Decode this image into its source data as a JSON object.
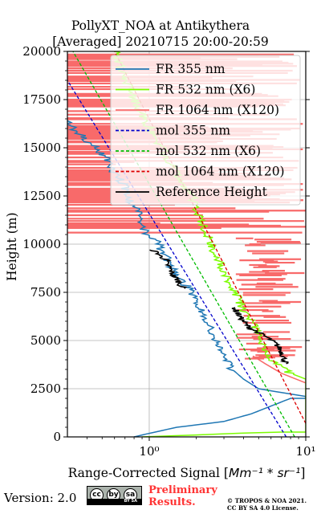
{
  "chart_data": {
    "type": "line",
    "title_line1": "PollyXT_NOA at Antikythera",
    "title_line2": "[Averaged] 20210715 20:00-20:59",
    "xlabel": "Range-Corrected Signal [",
    "xlabel_unit": "Mm⁻¹ * sr⁻¹",
    "xlabel_end": "]",
    "ylabel": "Height (m)",
    "xscale": "log",
    "xlim": [
      0.3,
      10
    ],
    "ylim": [
      0,
      20000
    ],
    "x_ticks": [
      {
        "value": 1,
        "label": "10⁰"
      },
      {
        "value": 10,
        "label": "10¹"
      }
    ],
    "y_ticks": [
      0,
      2500,
      5000,
      7500,
      10000,
      12500,
      15000,
      17500,
      20000
    ],
    "grid": true,
    "legend": "top-right",
    "series": [
      {
        "name": "FR 355 nm",
        "color": "#1f77b4",
        "style": "solid",
        "points": [
          [
            0.8,
            0
          ],
          [
            0.9,
            100
          ],
          [
            1.5,
            500
          ],
          [
            3,
            800
          ],
          [
            4.5,
            1200
          ],
          [
            6,
            1600
          ],
          [
            8,
            2000
          ],
          [
            10,
            2000
          ],
          [
            10,
            2100
          ],
          [
            7,
            2300
          ],
          [
            5,
            2500
          ],
          [
            4,
            3000
          ],
          [
            3.4,
            3500
          ],
          [
            3.0,
            4200
          ],
          [
            2.8,
            4700
          ],
          [
            2.6,
            5000
          ],
          [
            2.5,
            5500
          ],
          [
            2.3,
            6200
          ],
          [
            2.0,
            7000
          ],
          [
            1.8,
            7700
          ],
          [
            1.5,
            8300
          ],
          [
            1.35,
            9000
          ],
          [
            1.2,
            9700
          ],
          [
            1.1,
            10200
          ],
          [
            0.95,
            10600
          ],
          [
            0.9,
            11200
          ],
          [
            0.85,
            11600
          ],
          [
            0.75,
            12300
          ],
          [
            0.7,
            13000
          ],
          [
            0.6,
            13700
          ],
          [
            0.55,
            14300
          ],
          [
            0.45,
            15000
          ],
          [
            0.38,
            15500
          ],
          [
            0.33,
            16000
          ],
          [
            0.3,
            16500
          ]
        ]
      },
      {
        "name": "FR 532 nm (X6)",
        "color": "#7cfc00",
        "style": "solid",
        "points": [
          [
            0.9,
            0
          ],
          [
            2,
            100
          ],
          [
            4,
            200
          ],
          [
            7,
            250
          ],
          [
            10,
            250
          ],
          [
            10,
            3000
          ],
          [
            8,
            3300
          ],
          [
            6.5,
            3800
          ],
          [
            5.5,
            4500
          ],
          [
            5,
            5200
          ],
          [
            4.5,
            6000
          ],
          [
            4,
            6600
          ],
          [
            3.7,
            7200
          ],
          [
            3.3,
            8000
          ],
          [
            3.0,
            8600
          ],
          [
            2.7,
            9300
          ],
          [
            2.5,
            10000
          ],
          [
            2.3,
            10700
          ],
          [
            2.1,
            11300
          ],
          [
            2.0,
            11800
          ],
          [
            1.9,
            12400
          ],
          [
            1.7,
            13000
          ],
          [
            1.5,
            13700
          ],
          [
            1.35,
            14300
          ],
          [
            1.2,
            15000
          ],
          [
            1.05,
            15700
          ],
          [
            0.95,
            16400
          ],
          [
            0.85,
            17100
          ],
          [
            0.75,
            18000
          ],
          [
            0.7,
            18700
          ],
          [
            0.65,
            19300
          ],
          [
            0.6,
            20000
          ]
        ]
      },
      {
        "name": "FR 1064 nm (X120)",
        "color": "#f86a6a",
        "style": "solid",
        "points": []
      },
      {
        "name": "mol 355 nm",
        "color": "#0000cc",
        "style": "dashed",
        "points": [
          [
            7.5,
            0
          ],
          [
            0.3,
            18500
          ]
        ]
      },
      {
        "name": "mol 532 nm (X6)",
        "color": "#00bb00",
        "style": "dashed",
        "points": [
          [
            8.5,
            0
          ],
          [
            0.3,
            20500
          ]
        ]
      },
      {
        "name": "mol 1064 nm (X120)",
        "color": "#dd0000",
        "style": "dashed",
        "points": [
          [
            10,
            700
          ],
          [
            0.6,
            20000
          ]
        ]
      },
      {
        "name": "Reference Height",
        "color": "#000000",
        "style": "solid",
        "segments": [
          [
            [
              1.05,
              9700
            ],
            [
              1.15,
              9500
            ],
            [
              1.2,
              9300
            ],
            [
              1.3,
              9200
            ],
            [
              1.28,
              9000
            ],
            [
              1.35,
              8800
            ],
            [
              1.38,
              8600
            ],
            [
              1.42,
              8400
            ],
            [
              1.45,
              8300
            ],
            [
              1.5,
              8200
            ],
            [
              1.55,
              8000
            ],
            [
              1.6,
              7800
            ],
            [
              1.7,
              7700
            ]
          ],
          [
            [
              3.5,
              6700
            ],
            [
              3.7,
              6400
            ],
            [
              3.9,
              6100
            ],
            [
              4.2,
              5800
            ],
            [
              4.5,
              5600
            ],
            [
              4.8,
              5500
            ],
            [
              5.3,
              5300
            ],
            [
              5.8,
              5100
            ],
            [
              6.3,
              4900
            ],
            [
              6.8,
              4600
            ],
            [
              7.1,
              4300
            ],
            [
              7.3,
              4000
            ],
            [
              7.5,
              3800
            ]
          ]
        ]
      }
    ]
  },
  "footer": {
    "version": "Version: 2.0",
    "cc_icon_labels": [
      "cc",
      "by",
      "sa"
    ],
    "cc_bar_text": "BY   SA",
    "preliminary_line1": "Preliminary",
    "preliminary_line2": "Results.",
    "copyright_line1": "© TROPOS & NOA 2021.",
    "copyright_line2": "CC BY SA 4.0 License."
  }
}
